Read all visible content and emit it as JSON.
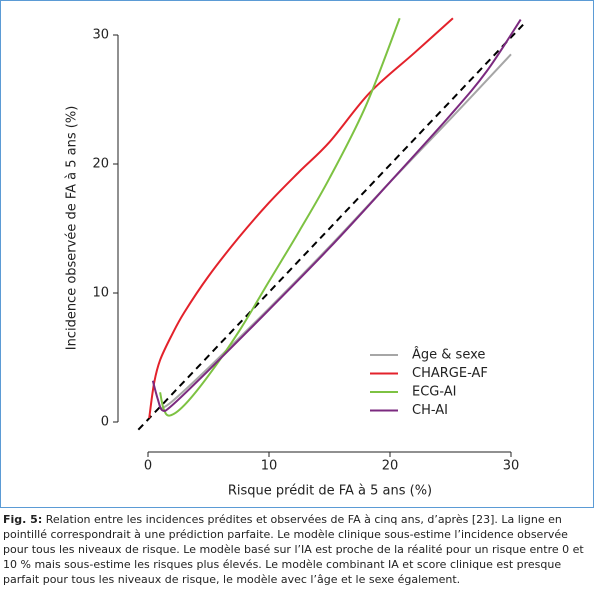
{
  "chart_data": {
    "type": "line",
    "xlabel": "Risque prédit de FA à 5 ans (%)",
    "ylabel": "Incidence observée de FA à 5 ans (%)",
    "xlim": [
      -2,
      32
    ],
    "ylim": [
      -1.5,
      31.5
    ],
    "xticks": [
      0,
      10,
      20,
      30
    ],
    "yticks": [
      0,
      10,
      20,
      30
    ],
    "legend": "lower right",
    "reference_line": {
      "x": [
        -0.8,
        31
      ],
      "y": [
        -0.6,
        30.8
      ],
      "color": "#000000",
      "dashed": true
    },
    "series": [
      {
        "name": "Âge & sexe",
        "color": "#a6a6a6",
        "x": [
          1,
          2,
          5,
          10,
          15,
          20,
          25,
          30
        ],
        "values": [
          1.0,
          1.6,
          4.2,
          8.8,
          13.6,
          18.6,
          23.5,
          28.5
        ]
      },
      {
        "name": "CHARGE-AF",
        "color": "#e3222b",
        "x": [
          0.1,
          0.5,
          1,
          2,
          3,
          5,
          7.5,
          10,
          12.5,
          15,
          18.3,
          22,
          25.2
        ],
        "values": [
          0.3,
          3,
          4.8,
          6.8,
          8.5,
          11.3,
          14.3,
          17,
          19.4,
          21.7,
          25.5,
          28.6,
          31.3
        ]
      },
      {
        "name": "ECG-AI",
        "color": "#7dc242",
        "x": [
          1.0,
          1.3,
          1.8,
          3,
          5,
          7.5,
          10,
          12.5,
          15,
          18,
          20.8
        ],
        "values": [
          2.3,
          1.0,
          0.5,
          1.3,
          3.6,
          7.0,
          10.9,
          14.8,
          18.9,
          24.5,
          31.3
        ]
      },
      {
        "name": "CH-AI",
        "color": "#7b2a7f",
        "x": [
          0.4,
          0.8,
          1.2,
          2,
          5,
          10,
          15,
          20,
          25,
          28,
          30.8
        ],
        "values": [
          3.2,
          1.8,
          0.9,
          1.3,
          4.0,
          8.7,
          13.5,
          18.6,
          23.8,
          27.2,
          31.2
        ]
      }
    ]
  },
  "caption": {
    "label": "Fig. 5:",
    "text": "Relation entre les incidences prédites et observées de FA à cinq ans, d’après [23]. La ligne en pointillé correspondrait à une prédiction parfaite. Le modèle clinique sous-estime l’incidence observée pour tous les niveaux de risque. Le modèle basé sur l’IA est proche de la réalité pour un risque entre 0 et 10 % mais sous-estime les risques plus élevés. Le modèle combinant IA et score clinique est presque parfait pour tous les niveaux de risque, le modèle avec l’âge et le sexe également."
  }
}
